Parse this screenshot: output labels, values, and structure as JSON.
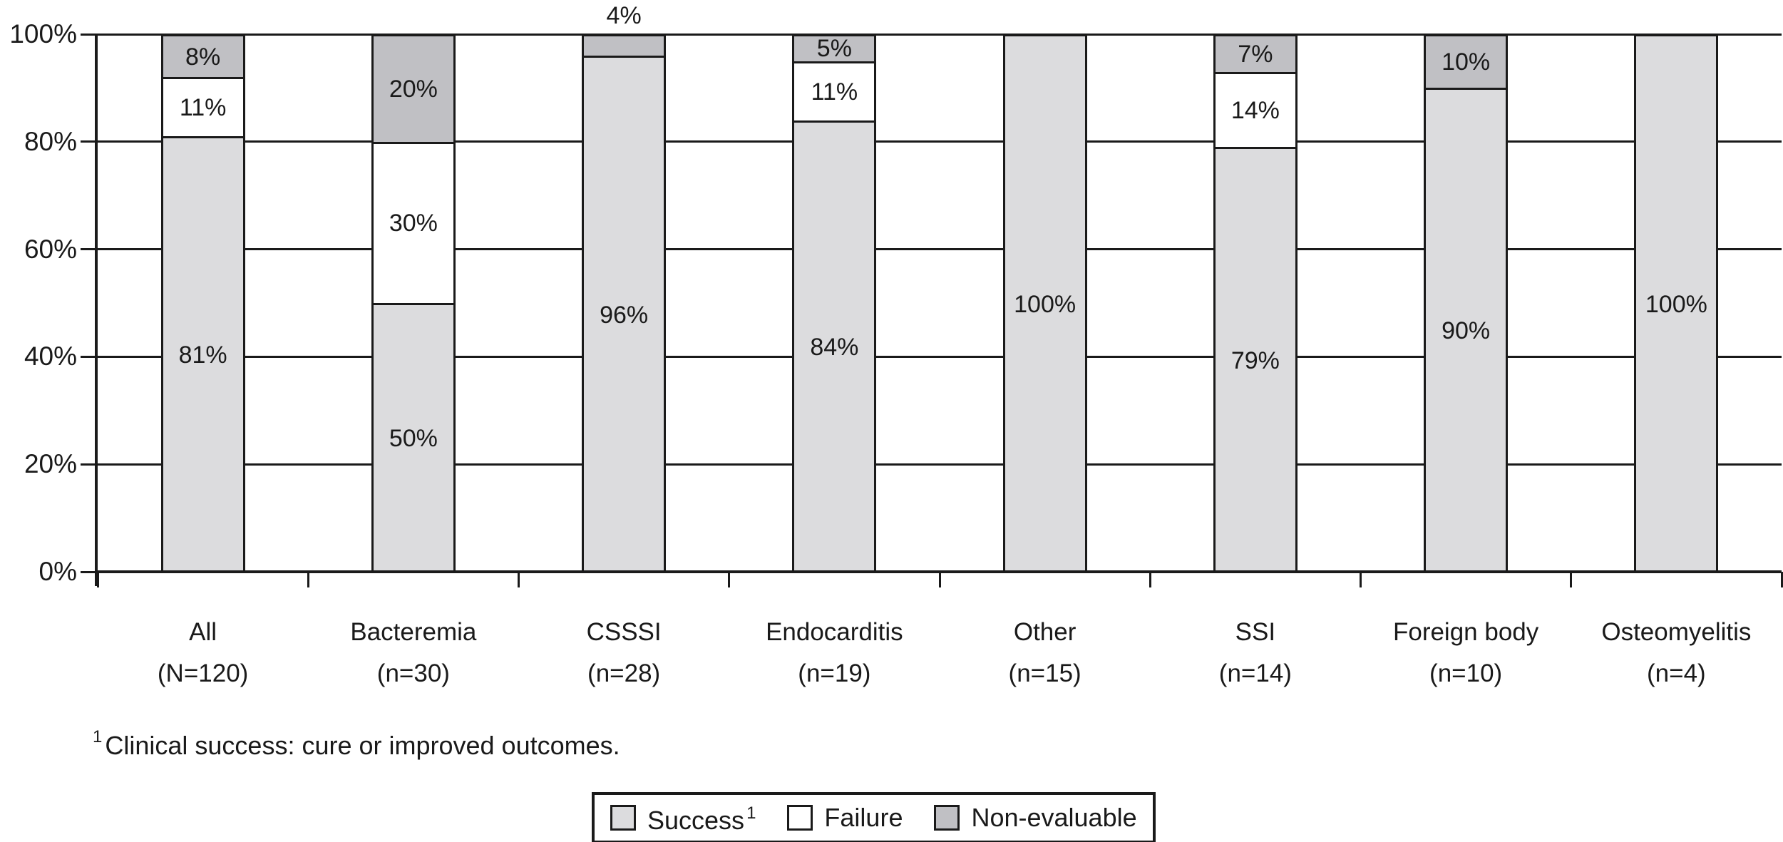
{
  "footnote": {
    "sup": "1",
    "text": "Clinical success: cure or improved outcomes."
  },
  "legend": {
    "items": [
      {
        "key": "success",
        "label": "Success",
        "sup": "1"
      },
      {
        "key": "failure",
        "label": "Failure",
        "sup": ""
      },
      {
        "key": "non_evaluable",
        "label": "Non-evaluable",
        "sup": ""
      }
    ]
  },
  "chart_data": {
    "type": "bar",
    "stacked": true,
    "orientation": "vertical",
    "title": "",
    "xlabel": "",
    "ylabel": "",
    "ylim": [
      0,
      100
    ],
    "grid": true,
    "legend_position": "bottom",
    "yticks": [
      {
        "value": 0,
        "label": "0%"
      },
      {
        "value": 20,
        "label": "20%"
      },
      {
        "value": 40,
        "label": "40%"
      },
      {
        "value": 60,
        "label": "60%"
      },
      {
        "value": 80,
        "label": "80%"
      },
      {
        "value": 100,
        "label": "100%"
      }
    ],
    "colors": {
      "success": "#dcdcde",
      "failure": "#ffffff",
      "non_evaluable": "#c0c0c4",
      "line": "#1a1a1a"
    },
    "series_order": [
      "success",
      "failure",
      "non_evaluable"
    ],
    "series_names": {
      "success": "Success",
      "failure": "Failure",
      "non_evaluable": "Non-evaluable"
    },
    "bars": [
      {
        "category": "All",
        "n_label": "(N=120)",
        "segments": [
          {
            "series": "success",
            "value": 81,
            "label": "81%"
          },
          {
            "series": "failure",
            "value": 11,
            "label": "11%"
          },
          {
            "series": "non_evaluable",
            "value": 8,
            "label": "8%"
          }
        ]
      },
      {
        "category": "Bacteremia",
        "n_label": "(n=30)",
        "segments": [
          {
            "series": "success",
            "value": 50,
            "label": "50%"
          },
          {
            "series": "failure",
            "value": 30,
            "label": "30%"
          },
          {
            "series": "non_evaluable",
            "value": 20,
            "label": "20%"
          }
        ]
      },
      {
        "category": "CSSSI",
        "n_label": "(n=28)",
        "segments": [
          {
            "series": "success",
            "value": 96,
            "label": "96%"
          },
          {
            "series": "non_evaluable",
            "value": 4,
            "label": "4%",
            "label_position": "above"
          }
        ]
      },
      {
        "category": "Endocarditis",
        "n_label": "(n=19)",
        "segments": [
          {
            "series": "success",
            "value": 84,
            "label": "84%"
          },
          {
            "series": "failure",
            "value": 11,
            "label": "11%"
          },
          {
            "series": "non_evaluable",
            "value": 5,
            "label": "5%"
          }
        ]
      },
      {
        "category": "Other",
        "n_label": "(n=15)",
        "segments": [
          {
            "series": "success",
            "value": 100,
            "label": "100%"
          }
        ]
      },
      {
        "category": "SSI",
        "n_label": "(n=14)",
        "segments": [
          {
            "series": "success",
            "value": 79,
            "label": "79%"
          },
          {
            "series": "failure",
            "value": 14,
            "label": "14%"
          },
          {
            "series": "non_evaluable",
            "value": 7,
            "label": "7%"
          }
        ]
      },
      {
        "category": "Foreign body",
        "n_label": "(n=10)",
        "segments": [
          {
            "series": "success",
            "value": 90,
            "label": "90%"
          },
          {
            "series": "non_evaluable",
            "value": 10,
            "label": "10%"
          }
        ]
      },
      {
        "category": "Osteomyelitis",
        "n_label": "(n=4)",
        "segments": [
          {
            "series": "success",
            "value": 100,
            "label": "100%"
          }
        ]
      }
    ]
  }
}
